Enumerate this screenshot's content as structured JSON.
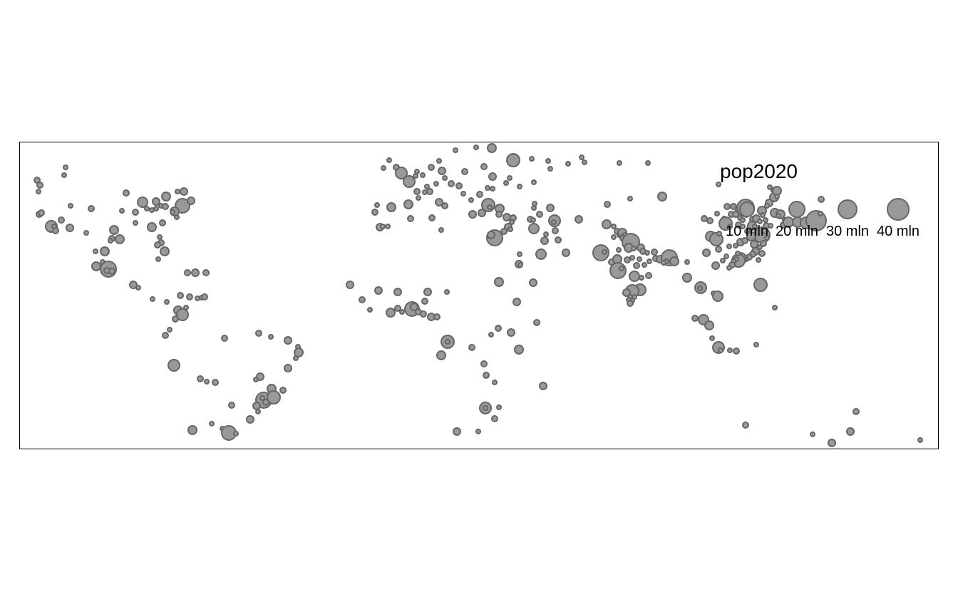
{
  "colors": {
    "background": "#ffffff",
    "city_fill": "#999999",
    "city_stroke": "#666666",
    "frame": "#000000"
  },
  "map": {
    "type": "proportional-symbol",
    "extent": {
      "lon": [
        -180,
        180
      ],
      "lat": [
        -55,
        75
      ]
    },
    "legend": {
      "title": "pop2020",
      "position": "top-right",
      "items": [
        {
          "label": "10 mln",
          "value_mln": 10
        },
        {
          "label": "20 mln",
          "value_mln": 20
        },
        {
          "label": "30 mln",
          "value_mln": 30
        },
        {
          "label": "40 mln",
          "value_mln": 40
        }
      ]
    }
  }
}
